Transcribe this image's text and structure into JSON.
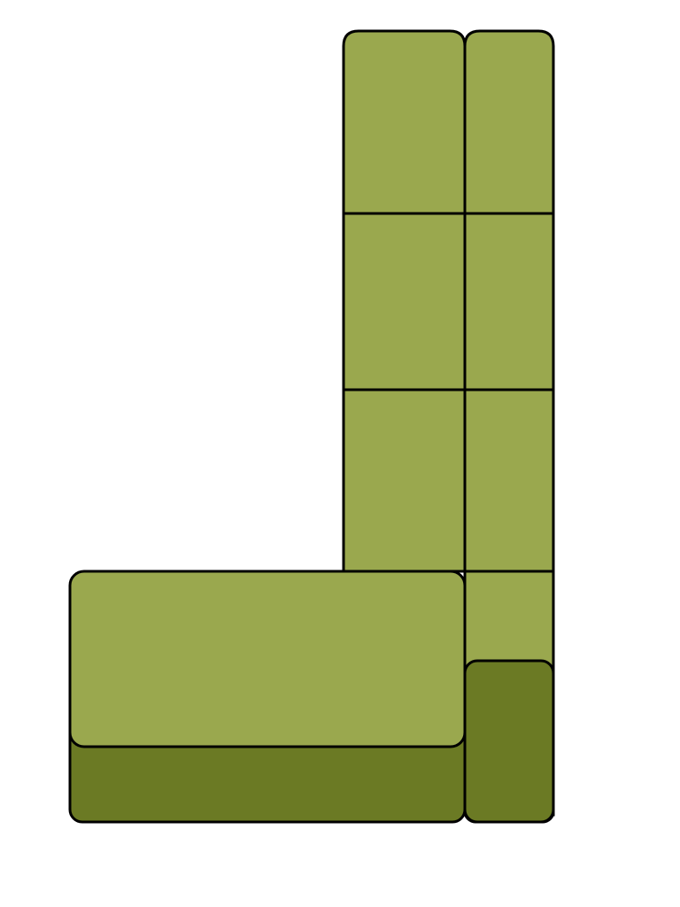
{
  "colors": {
    "background": "#ffffff",
    "cushion_light": "#9aa84e",
    "base_dark": "#6b7a24",
    "outline": "#000000"
  },
  "sofa": {
    "shape": "L-shaped sectional sofa, top view",
    "back_column_seat_rows": 4,
    "armrests": 2,
    "chaise_cushions": 1
  }
}
